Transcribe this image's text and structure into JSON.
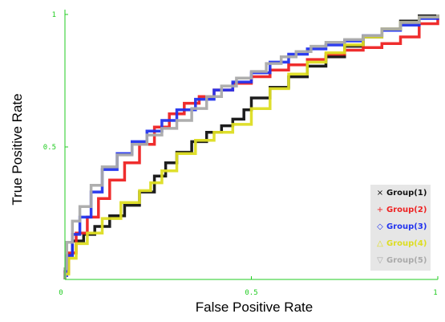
{
  "chart_data": {
    "type": "line",
    "title": "",
    "xlabel": "False Positive Rate",
    "ylabel": "True Positive Rate",
    "xlim": [
      0,
      1
    ],
    "ylim": [
      0,
      1
    ],
    "x_ticks": [
      {
        "value": 0,
        "label": "0"
      },
      {
        "value": 0.5,
        "label": "0.5"
      },
      {
        "value": 1,
        "label": "1"
      }
    ],
    "y_ticks": [
      {
        "value": 0.5,
        "label": "0.5"
      },
      {
        "value": 1,
        "label": "1"
      }
    ],
    "origin_label": "0",
    "grid": false,
    "legend_position": "bottom-right",
    "axis_color": "#22cc22",
    "series": [
      {
        "name": "Group(1)",
        "marker": "×",
        "color": "#111111",
        "points": [
          [
            0,
            0
          ],
          [
            0.01,
            0.06
          ],
          [
            0.02,
            0.13
          ],
          [
            0.05,
            0.16
          ],
          [
            0.08,
            0.18
          ],
          [
            0.12,
            0.22
          ],
          [
            0.16,
            0.26
          ],
          [
            0.2,
            0.3
          ],
          [
            0.24,
            0.36
          ],
          [
            0.27,
            0.42
          ],
          [
            0.3,
            0.46
          ],
          [
            0.34,
            0.5
          ],
          [
            0.38,
            0.54
          ],
          [
            0.42,
            0.57
          ],
          [
            0.45,
            0.59
          ],
          [
            0.48,
            0.62
          ],
          [
            0.5,
            0.66
          ],
          [
            0.55,
            0.71
          ],
          [
            0.6,
            0.74
          ],
          [
            0.65,
            0.79
          ],
          [
            0.7,
            0.82
          ],
          [
            0.75,
            0.86
          ],
          [
            0.8,
            0.9
          ],
          [
            0.85,
            0.93
          ],
          [
            0.9,
            0.96
          ],
          [
            0.95,
            0.99
          ],
          [
            1,
            1
          ]
        ]
      },
      {
        "name": "Group(2)",
        "marker": "+",
        "color": "#ee2222",
        "points": [
          [
            0,
            0
          ],
          [
            0.01,
            0.05
          ],
          [
            0.03,
            0.15
          ],
          [
            0.06,
            0.2
          ],
          [
            0.09,
            0.27
          ],
          [
            0.12,
            0.34
          ],
          [
            0.16,
            0.41
          ],
          [
            0.2,
            0.47
          ],
          [
            0.24,
            0.55
          ],
          [
            0.28,
            0.6
          ],
          [
            0.32,
            0.65
          ],
          [
            0.36,
            0.68
          ],
          [
            0.4,
            0.7
          ],
          [
            0.45,
            0.73
          ],
          [
            0.5,
            0.75
          ],
          [
            0.55,
            0.78
          ],
          [
            0.6,
            0.8
          ],
          [
            0.65,
            0.82
          ],
          [
            0.7,
            0.84
          ],
          [
            0.75,
            0.86
          ],
          [
            0.8,
            0.87
          ],
          [
            0.85,
            0.88
          ],
          [
            0.9,
            0.9
          ],
          [
            0.95,
            0.93
          ],
          [
            1,
            1
          ]
        ]
      },
      {
        "name": "Group(3)",
        "marker": "◇",
        "color": "#2233ee",
        "points": [
          [
            0,
            0
          ],
          [
            0.005,
            0.03
          ],
          [
            0.02,
            0.15
          ],
          [
            0.04,
            0.19
          ],
          [
            0.07,
            0.28
          ],
          [
            0.1,
            0.38
          ],
          [
            0.14,
            0.45
          ],
          [
            0.18,
            0.5
          ],
          [
            0.22,
            0.54
          ],
          [
            0.26,
            0.58
          ],
          [
            0.3,
            0.62
          ],
          [
            0.35,
            0.66
          ],
          [
            0.4,
            0.7
          ],
          [
            0.45,
            0.73
          ],
          [
            0.5,
            0.76
          ],
          [
            0.55,
            0.8
          ],
          [
            0.6,
            0.84
          ],
          [
            0.65,
            0.86
          ],
          [
            0.7,
            0.88
          ],
          [
            0.75,
            0.89
          ],
          [
            0.8,
            0.91
          ],
          [
            0.85,
            0.93
          ],
          [
            0.9,
            0.95
          ],
          [
            0.95,
            0.97
          ],
          [
            1,
            1
          ]
        ]
      },
      {
        "name": "Group(4)",
        "marker": "△",
        "color": "#dddd22",
        "points": [
          [
            0,
            0
          ],
          [
            0.01,
            0.04
          ],
          [
            0.03,
            0.12
          ],
          [
            0.06,
            0.15
          ],
          [
            0.1,
            0.2
          ],
          [
            0.15,
            0.26
          ],
          [
            0.2,
            0.32
          ],
          [
            0.23,
            0.35
          ],
          [
            0.26,
            0.38
          ],
          [
            0.3,
            0.44
          ],
          [
            0.35,
            0.51
          ],
          [
            0.4,
            0.54
          ],
          [
            0.45,
            0.57
          ],
          [
            0.5,
            0.6
          ],
          [
            0.55,
            0.69
          ],
          [
            0.6,
            0.75
          ],
          [
            0.65,
            0.8
          ],
          [
            0.7,
            0.84
          ],
          [
            0.75,
            0.87
          ],
          [
            0.8,
            0.9
          ],
          [
            0.85,
            0.93
          ],
          [
            0.9,
            0.96
          ],
          [
            0.95,
            0.98
          ],
          [
            1,
            1
          ]
        ]
      },
      {
        "name": "Group(5)",
        "marker": "▽",
        "color": "#aaaaaa",
        "points": [
          [
            0,
            0
          ],
          [
            0.005,
            0.08
          ],
          [
            0.02,
            0.2
          ],
          [
            0.04,
            0.24
          ],
          [
            0.07,
            0.31
          ],
          [
            0.1,
            0.4
          ],
          [
            0.14,
            0.45
          ],
          [
            0.18,
            0.49
          ],
          [
            0.22,
            0.53
          ],
          [
            0.26,
            0.56
          ],
          [
            0.3,
            0.58
          ],
          [
            0.34,
            0.62
          ],
          [
            0.38,
            0.67
          ],
          [
            0.42,
            0.71
          ],
          [
            0.46,
            0.75
          ],
          [
            0.5,
            0.77
          ],
          [
            0.54,
            0.8
          ],
          [
            0.58,
            0.83
          ],
          [
            0.62,
            0.85
          ],
          [
            0.66,
            0.87
          ],
          [
            0.7,
            0.89
          ],
          [
            0.75,
            0.9
          ],
          [
            0.8,
            0.91
          ],
          [
            0.85,
            0.93
          ],
          [
            0.9,
            0.96
          ],
          [
            0.95,
            0.98
          ],
          [
            1,
            1
          ]
        ]
      }
    ]
  }
}
